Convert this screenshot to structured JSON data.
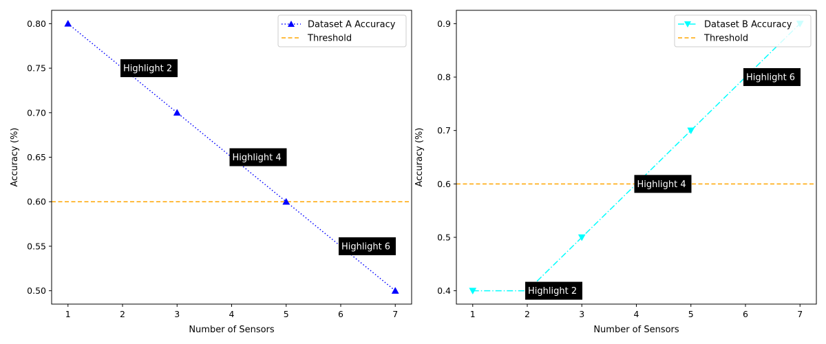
{
  "chart_data": [
    {
      "type": "line",
      "title": "",
      "xlabel": "Number of Sensors",
      "ylabel": "Accuracy (%)",
      "x": [
        1,
        2,
        3,
        4,
        5,
        6,
        7
      ],
      "xlim": [
        0.7,
        7.3
      ],
      "ylim": [
        0.485,
        0.815
      ],
      "xticks": [
        1,
        2,
        3,
        4,
        5,
        6,
        7
      ],
      "yticks": [
        0.5,
        0.55,
        0.6,
        0.65,
        0.7,
        0.75,
        0.8
      ],
      "ytick_labels": [
        "0.50",
        "0.55",
        "0.60",
        "0.65",
        "0.70",
        "0.75",
        "0.80"
      ],
      "grid": false,
      "legend_position": "top-right",
      "series": [
        {
          "name": "Dataset A Accuracy",
          "values": [
            0.8,
            0.75,
            0.7,
            0.65,
            0.6,
            0.55,
            0.5
          ],
          "color": "#0000ff",
          "line_style": "dotted",
          "marker": "triangle-up",
          "marker_indices": [
            0,
            2,
            4,
            6
          ]
        }
      ],
      "threshold": {
        "name": "Threshold",
        "value": 0.6,
        "color": "#ffa500",
        "line_style": "dashed"
      },
      "annotations": [
        {
          "text": "Highlight 2",
          "x": 2,
          "y": 0.75
        },
        {
          "text": "Highlight 4",
          "x": 4,
          "y": 0.65
        },
        {
          "text": "Highlight 6",
          "x": 6,
          "y": 0.55
        }
      ]
    },
    {
      "type": "line",
      "title": "",
      "xlabel": "Number of Sensors",
      "ylabel": "Accuracy (%)",
      "x": [
        1,
        2,
        3,
        4,
        5,
        6,
        7
      ],
      "xlim": [
        0.7,
        7.3
      ],
      "ylim": [
        0.375,
        0.925
      ],
      "xticks": [
        1,
        2,
        3,
        4,
        5,
        6,
        7
      ],
      "yticks": [
        0.4,
        0.5,
        0.6,
        0.7,
        0.8,
        0.9
      ],
      "ytick_labels": [
        "0.4",
        "0.5",
        "0.6",
        "0.7",
        "0.8",
        "0.9"
      ],
      "grid": false,
      "legend_position": "top-right",
      "series": [
        {
          "name": "Dataset B Accuracy",
          "values": [
            0.4,
            0.4,
            0.5,
            0.6,
            0.7,
            0.8,
            0.9
          ],
          "color": "#00ffff",
          "line_style": "dash-dot",
          "marker": "triangle-down",
          "marker_indices": [
            0,
            2,
            4,
            6
          ]
        }
      ],
      "threshold": {
        "name": "Threshold",
        "value": 0.6,
        "color": "#ffa500",
        "line_style": "dashed"
      },
      "annotations": [
        {
          "text": "Highlight 2",
          "x": 2,
          "y": 0.4
        },
        {
          "text": "Highlight 4",
          "x": 4,
          "y": 0.6
        },
        {
          "text": "Highlight 6",
          "x": 6,
          "y": 0.8
        }
      ]
    }
  ]
}
